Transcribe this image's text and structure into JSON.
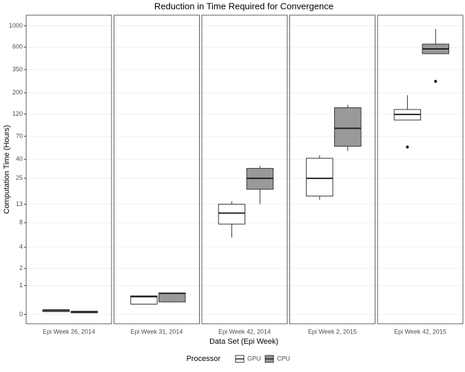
{
  "chart_data": {
    "type": "box",
    "title": "Reduction in Time Required for Convergence",
    "x_label": "Data Set (Epi Week)",
    "y_label": "Computation Time (Hours)",
    "categories": [
      "Epi Week 26, 2014",
      "Epi Week 31, 2014",
      "Epi Week 42, 2014",
      "Epi Week 2, 2015",
      "Epi Week 42, 2015"
    ],
    "scale": "log1p",
    "ylim": [
      -0.2,
      1290
    ],
    "yticks": [
      0,
      1,
      2,
      4,
      8,
      13,
      25,
      40,
      70,
      120,
      200,
      350,
      600,
      1000
    ],
    "grid": true,
    "legend_title": "Processor",
    "legend": "bottom",
    "series": [
      {
        "name": "GPU",
        "color": "#ffffff",
        "values": [
          {
            "min": 0.06,
            "q1": 0.07,
            "median": 0.1,
            "q3": 0.12,
            "max": 0.13
          },
          {
            "min": 0.27,
            "q1": 0.28,
            "median": 0.53,
            "q3": 0.56,
            "max": 0.57
          },
          {
            "min": 5.3,
            "q1": 7.7,
            "median": 10.3,
            "q3": 13,
            "max": 14
          },
          {
            "min": 14.5,
            "q1": 16,
            "median": 25,
            "q3": 41,
            "max": 44
          },
          {
            "min": 104,
            "q1": 104,
            "median": 119,
            "q3": 134,
            "max": 189,
            "outliers": [
              54
            ]
          }
        ]
      },
      {
        "name": "CPU",
        "color": "#999999",
        "values": [
          {
            "min": 0.03,
            "q1": 0.04,
            "median": 0.06,
            "q3": 0.08,
            "max": 0.09
          },
          {
            "min": 0.34,
            "q1": 0.35,
            "median": 0.66,
            "q3": 0.67,
            "max": 0.68
          },
          {
            "min": 13,
            "q1": 19,
            "median": 25,
            "q3": 32,
            "max": 34
          },
          {
            "min": 49,
            "q1": 55,
            "median": 85,
            "q3": 140,
            "max": 150
          },
          {
            "min": 512,
            "q1": 512,
            "median": 574,
            "q3": 645,
            "max": 928,
            "outliers": [
              264
            ]
          }
        ]
      }
    ]
  }
}
